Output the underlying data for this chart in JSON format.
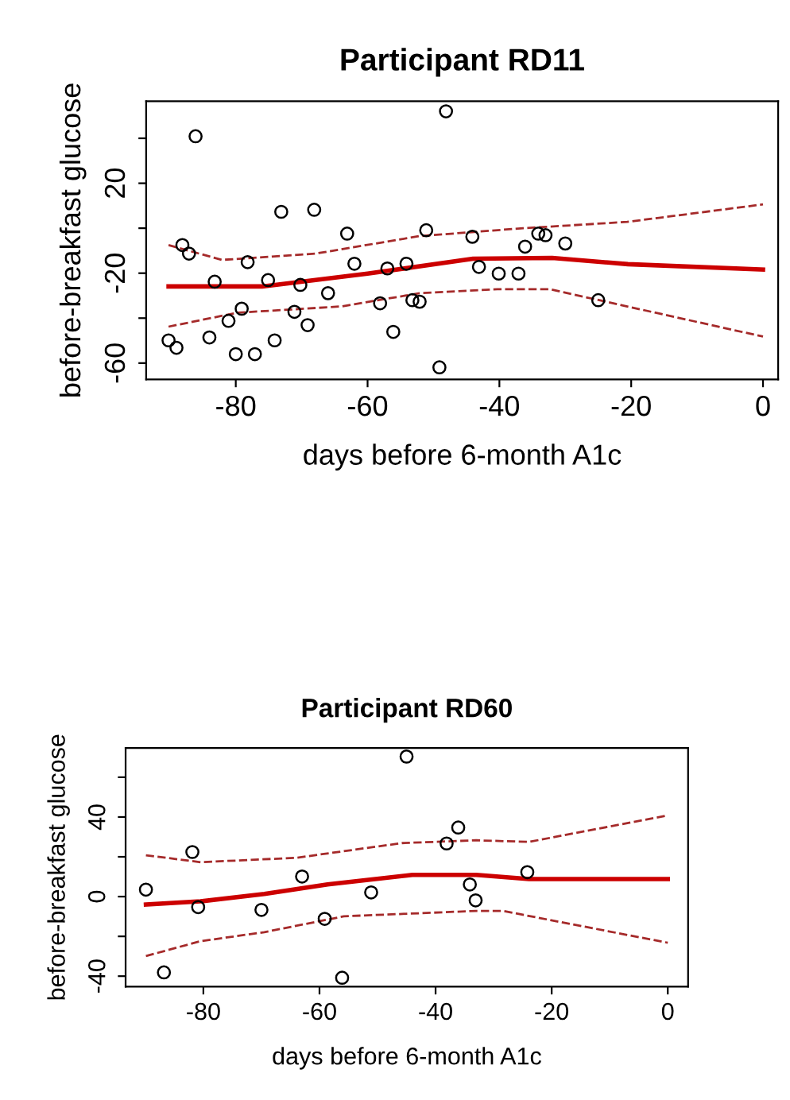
{
  "chart_data": [
    {
      "type": "scatter",
      "title": "Participant RD11",
      "xlabel": "days before 6-month A1c",
      "ylabel": "before-breakfast glucose",
      "xlim": [
        -93.6,
        2.3
      ],
      "ylim": [
        -67.3,
        56.5
      ],
      "xticks": [
        -80,
        -60,
        -40,
        -20,
        0
      ],
      "yticks": [
        {
          "value": -60,
          "label": "-60"
        },
        {
          "value": -40,
          "label": null
        },
        {
          "value": -20,
          "label": "-20"
        },
        {
          "value": 0,
          "label": null
        },
        {
          "value": 20,
          "label": "20"
        },
        {
          "value": 40,
          "label": null
        }
      ],
      "grid": false,
      "legend": false,
      "series": [
        {
          "marker": "circle",
          "color": "#000000",
          "x": [
            -90.2,
            -89.0,
            -86.1,
            -88.1,
            -87.1,
            -84.0,
            -83.2,
            -81.1,
            -80.0,
            -79.1,
            -78.2,
            -77.1,
            -75.1,
            -74.1,
            -73.1,
            -71.1,
            -70.2,
            -69.1,
            -68.1,
            -66.0,
            -63.1,
            -62.0,
            -58.1,
            -57.0,
            -56.1,
            -54.1,
            -53.2,
            -52.1,
            -51.1,
            -49.1,
            -48.1,
            -44.1,
            -43.1,
            -40.1,
            -37.1,
            -36.1,
            -34.1,
            -33.0,
            -30.0,
            -25.0
          ],
          "values": [
            -49.9,
            -53.2,
            40.9,
            -7.5,
            -11.3,
            -48.6,
            -23.8,
            -41.2,
            -56.0,
            -35.8,
            -15.1,
            -56.0,
            -23.1,
            -49.9,
            7.3,
            -37.2,
            -25.2,
            -43.1,
            8.2,
            -28.9,
            -2.4,
            -15.8,
            -33.4,
            -17.9,
            -46.1,
            -15.8,
            -32.0,
            -32.7,
            -0.9,
            -61.9,
            52.0,
            -3.8,
            -17.2,
            -20.2,
            -20.2,
            -8.2,
            -2.4,
            -3.1,
            -6.8,
            -32.0
          ]
        },
        {
          "type": "line",
          "line_style": "solid",
          "color": "#cc0000",
          "x": [
            -90.2,
            -76,
            -60,
            -44,
            -32,
            -20.5,
            0
          ],
          "values": [
            -25.9,
            -25.9,
            -20.2,
            -13.6,
            -13.2,
            -16,
            -18.4
          ]
        },
        {
          "type": "line",
          "line_style": "dashed",
          "color": "#a52a2a",
          "x": [
            -90.2,
            -82.1,
            -67.9,
            -52.1,
            -36.4,
            -20.6,
            0
          ],
          "values": [
            -7.5,
            -14.1,
            -11.3,
            -3.5,
            0,
            2.8,
            10.6
          ]
        },
        {
          "type": "line",
          "line_style": "dashed",
          "color": "#a52a2a",
          "x": [
            -90.2,
            -79.8,
            -64,
            -52.1,
            -40.3,
            -32.4,
            -20.6,
            0
          ],
          "values": [
            -43.8,
            -37.6,
            -34.8,
            -28.9,
            -27.1,
            -27.1,
            -34.8,
            -48.2
          ]
        }
      ]
    },
    {
      "type": "scatter",
      "title": "Participant RD60",
      "xlabel": "days before 6-month A1c",
      "ylabel": "before-breakfast glucose",
      "xlim": [
        -93.4,
        3.5
      ],
      "ylim": [
        -45.3,
        74.7
      ],
      "xticks": [
        -80,
        -60,
        -40,
        -20,
        0
      ],
      "yticks": [
        {
          "value": -40,
          "label": "-40"
        },
        {
          "value": -20,
          "label": null
        },
        {
          "value": 0,
          "label": "0"
        },
        {
          "value": 20,
          "label": null
        },
        {
          "value": 40,
          "label": "40"
        },
        {
          "value": 60,
          "label": null
        }
      ],
      "grid": false,
      "legend": false,
      "series": [
        {
          "marker": "circle",
          "color": "#000000",
          "x": [
            -89.9,
            -86.8,
            -81.9,
            -80.9,
            -70.0,
            -63.0,
            -59.1,
            -56.1,
            -51.1,
            -45.0,
            -38.1,
            -36.1,
            -34.1,
            -33.1,
            -24.2
          ],
          "values": [
            3.5,
            -38.1,
            22.4,
            -5.3,
            -6.7,
            10.1,
            -11.2,
            -40.8,
            2.1,
            70.4,
            26.7,
            34.7,
            6.1,
            -1.9,
            12.3
          ]
        },
        {
          "type": "line",
          "line_style": "solid",
          "color": "#cc0000",
          "x": [
            -89.9,
            -80.5,
            -69.5,
            -58.6,
            -44,
            -33,
            -23.9,
            0
          ],
          "values": [
            -4,
            -2.4,
            1.3,
            6.1,
            10.9,
            10.9,
            8.8,
            8.8
          ]
        },
        {
          "type": "line",
          "line_style": "dashed",
          "color": "#a52a2a",
          "x": [
            -89.9,
            -80.5,
            -64.0,
            -45.8,
            -33.0,
            -23.9,
            0
          ],
          "values": [
            20.8,
            17.3,
            19.5,
            26.9,
            28.3,
            27.5,
            40.8
          ]
        },
        {
          "type": "line",
          "line_style": "dashed",
          "color": "#a52a2a",
          "x": [
            -89.9,
            -80.5,
            -69.5,
            -55.8,
            -33.0,
            -28.4,
            0
          ],
          "values": [
            -29.9,
            -22.4,
            -17.9,
            -9.9,
            -7.2,
            -7.2,
            -23.2
          ]
        }
      ]
    }
  ]
}
